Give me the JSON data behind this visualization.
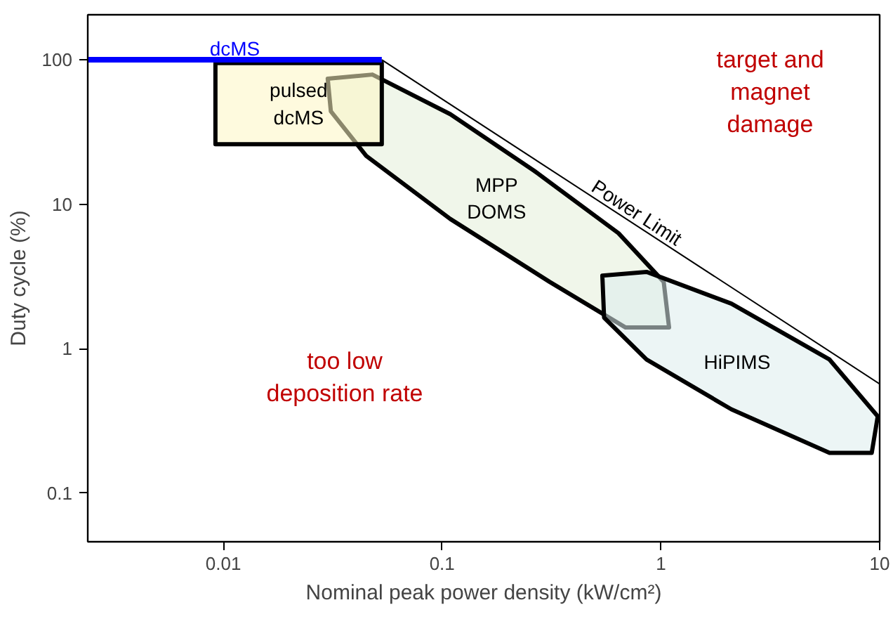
{
  "chart_data": {
    "type": "line",
    "xlabel": "Nominal peak power density (kW/cm²)",
    "ylabel": "Duty cycle (%)",
    "log": "xy",
    "xlim": [
      0.0024,
      10
    ],
    "ylim": [
      0.046,
      205
    ],
    "xticks": [
      0.01,
      0.1,
      1,
      10
    ],
    "yticks": [
      0.1,
      1,
      10,
      100
    ],
    "grid": false,
    "series": [
      {
        "name": "MPP\nDOMS",
        "type": "area",
        "color": "#e3efd9",
        "x": [
          0.03,
          0.048,
          0.109,
          0.264,
          0.64,
          1.03,
          1.09,
          0.69,
          0.31,
          0.109,
          0.045,
          0.031
        ],
        "values": [
          74,
          79,
          42,
          17,
          6.3,
          2.9,
          1.4,
          1.4,
          2.9,
          7.9,
          21.6,
          44
        ]
      },
      {
        "name": "HiPIMS",
        "type": "area",
        "color": "#dcecec",
        "x": [
          0.54,
          0.86,
          2.1,
          5.9,
          9.8,
          9.2,
          5.9,
          2.1,
          0.86,
          0.55
        ],
        "values": [
          3.2,
          3.4,
          2.05,
          0.84,
          0.34,
          0.19,
          0.19,
          0.38,
          0.84,
          1.64
        ]
      },
      {
        "name": "pulsed\ndcMS",
        "type": "area",
        "color": "#fdf6c3",
        "x": [
          0.0092,
          0.053,
          0.053,
          0.0092
        ],
        "values": [
          95,
          95,
          26,
          26
        ]
      },
      {
        "name": "dcMS",
        "color": "#0000ff",
        "x": [
          0.0024,
          0.053
        ],
        "values": [
          100,
          100
        ]
      },
      {
        "name": "Power Limit",
        "color": "#000000",
        "x": [
          0.053,
          10
        ],
        "values": [
          100,
          0.57
        ]
      }
    ],
    "annotations": [
      "too low\ndeposition rate",
      "target and\nmagnet\ndamage"
    ]
  }
}
